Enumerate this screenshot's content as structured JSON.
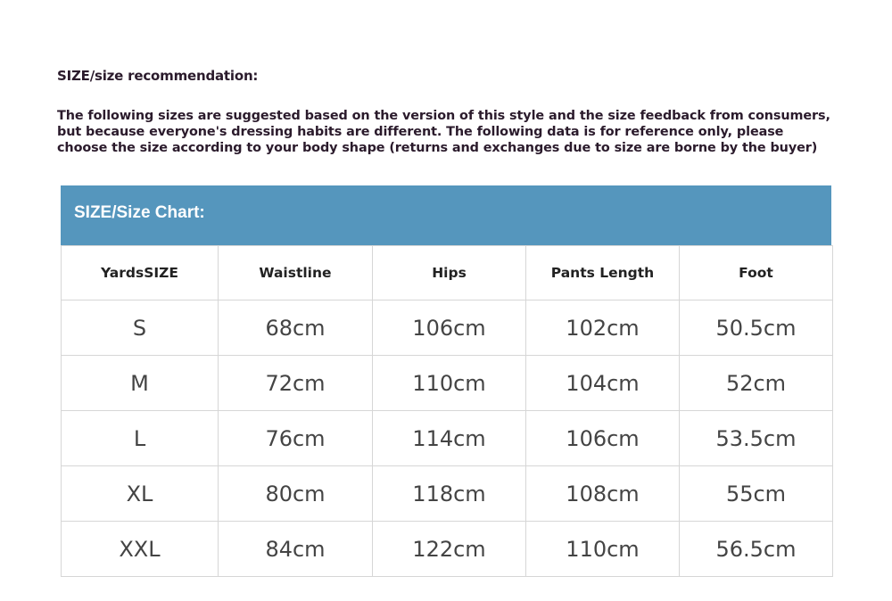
{
  "title": "SIZE/size recommendation:",
  "paragraph": [
    "The following sizes are suggested based on the version of this style and the size feedback from consumers,",
    "but because everyone's dressing habits are different. The following data is for reference only, please",
    "choose the size according to your body shape (returns and exchanges due to size are borne by the buyer)"
  ],
  "chart_header": "SIZE/Size Chart:",
  "colors": {
    "header_band": "#5596bd",
    "text": "#2b1b2c"
  },
  "table": {
    "columns": [
      "YardsSIZE",
      "Waistline",
      "Hips",
      "Pants Length",
      "Foot"
    ],
    "rows": [
      [
        "S",
        "68cm",
        "106cm",
        "102cm",
        "50.5cm"
      ],
      [
        "M",
        "72cm",
        "110cm",
        "104cm",
        "52cm"
      ],
      [
        "L",
        "76cm",
        "114cm",
        "106cm",
        "53.5cm"
      ],
      [
        "XL",
        "80cm",
        "118cm",
        "108cm",
        "55cm"
      ],
      [
        "XXL",
        "84cm",
        "122cm",
        "110cm",
        "56.5cm"
      ]
    ]
  }
}
